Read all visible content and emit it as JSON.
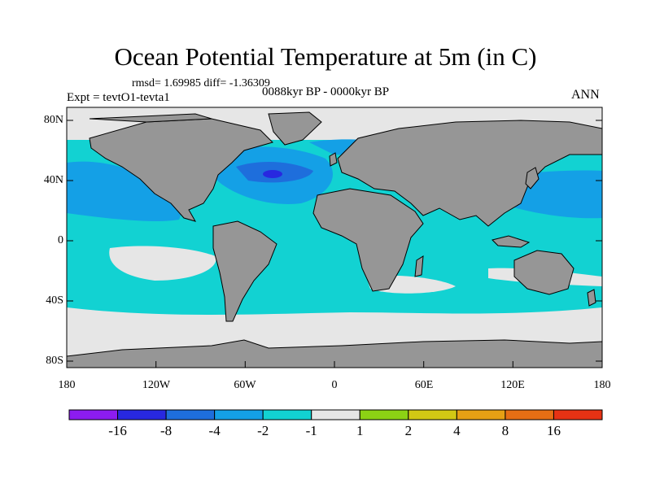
{
  "title": "Ocean Potential Temperature at 5m (in C)",
  "stats": "rmsd= 1.69985 diff= -1.36309",
  "subtitle": "0088kyr BP - 0000kyr BP",
  "experiment": "Expt = tevtO1-tevta1",
  "season": "ANN",
  "lat_ticks": [
    "80N",
    "40N",
    "0",
    "40S",
    "80S"
  ],
  "lon_ticks": [
    "180",
    "120W",
    "60W",
    "0",
    "60E",
    "120E",
    "180"
  ],
  "colorbar": {
    "labels": [
      "-16",
      "-8",
      "-4",
      "-2",
      "-1",
      "1",
      "2",
      "4",
      "8",
      "16"
    ],
    "colors": [
      "#8c1cf0",
      "#2828e0",
      "#1e6edc",
      "#14a0e6",
      "#12d2d2",
      "#e6e6e6",
      "#8cd214",
      "#d2c814",
      "#e6a014",
      "#e66e14",
      "#e63214"
    ]
  },
  "colors": {
    "land": "#969696",
    "ocean_neutral": "#e6e6e6",
    "ocean_minus1_minus2": "#12d2d2",
    "ocean_minus2_minus4": "#14a0e6",
    "ocean_minus4_minus8": "#1e6edc",
    "ocean_minus8_minus16": "#2828e0"
  }
}
